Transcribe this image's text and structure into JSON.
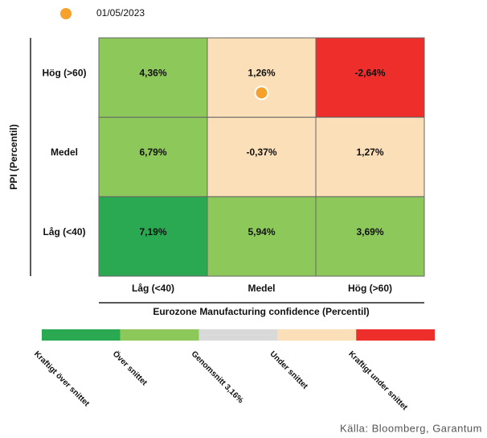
{
  "chart_data": {
    "type": "heatmap",
    "marker": {
      "label": "01/05/2023",
      "color": "#f5a12c",
      "x": "Medel",
      "y": "Hög (>60)"
    },
    "x_categories": [
      "Låg (<40)",
      "Medel",
      "Hög (>60)"
    ],
    "y_categories": [
      "Hög (>60)",
      "Medel",
      "Låg (<40)"
    ],
    "values": [
      [
        4.36,
        1.26,
        -2.64
      ],
      [
        6.79,
        -0.37,
        1.27
      ],
      [
        7.19,
        5.94,
        3.69
      ]
    ],
    "value_labels": [
      [
        "4,36%",
        "1,26%",
        "-2,64%"
      ],
      [
        "6,79%",
        "-0,37%",
        "1,27%"
      ],
      [
        "7,19%",
        "5,94%",
        "3,69%"
      ]
    ],
    "colors": [
      [
        "#8dc85a",
        "#fbdfb8",
        "#ee2e2a"
      ],
      [
        "#8dc85a",
        "#fbdfb8",
        "#fbdfb8"
      ],
      [
        "#2aa952",
        "#8dc85a",
        "#8dc85a"
      ]
    ],
    "x_label": "Eurozone Manufacturing confidence (Percentil)",
    "y_label": "PPI (Percentil)",
    "scale": [
      {
        "label": "Kraftigt över snittet",
        "color": "#2aa952"
      },
      {
        "label": "Över snittet",
        "color": "#8dc85a"
      },
      {
        "label": "Genomsnitt 3,16%",
        "color": "#d9d9d9"
      },
      {
        "label": "Under snittet",
        "color": "#fbdfb8"
      },
      {
        "label": "Kraftigt under snittet",
        "color": "#ee2e2a"
      }
    ],
    "source": "Källa: Bloomberg, Garantum"
  }
}
